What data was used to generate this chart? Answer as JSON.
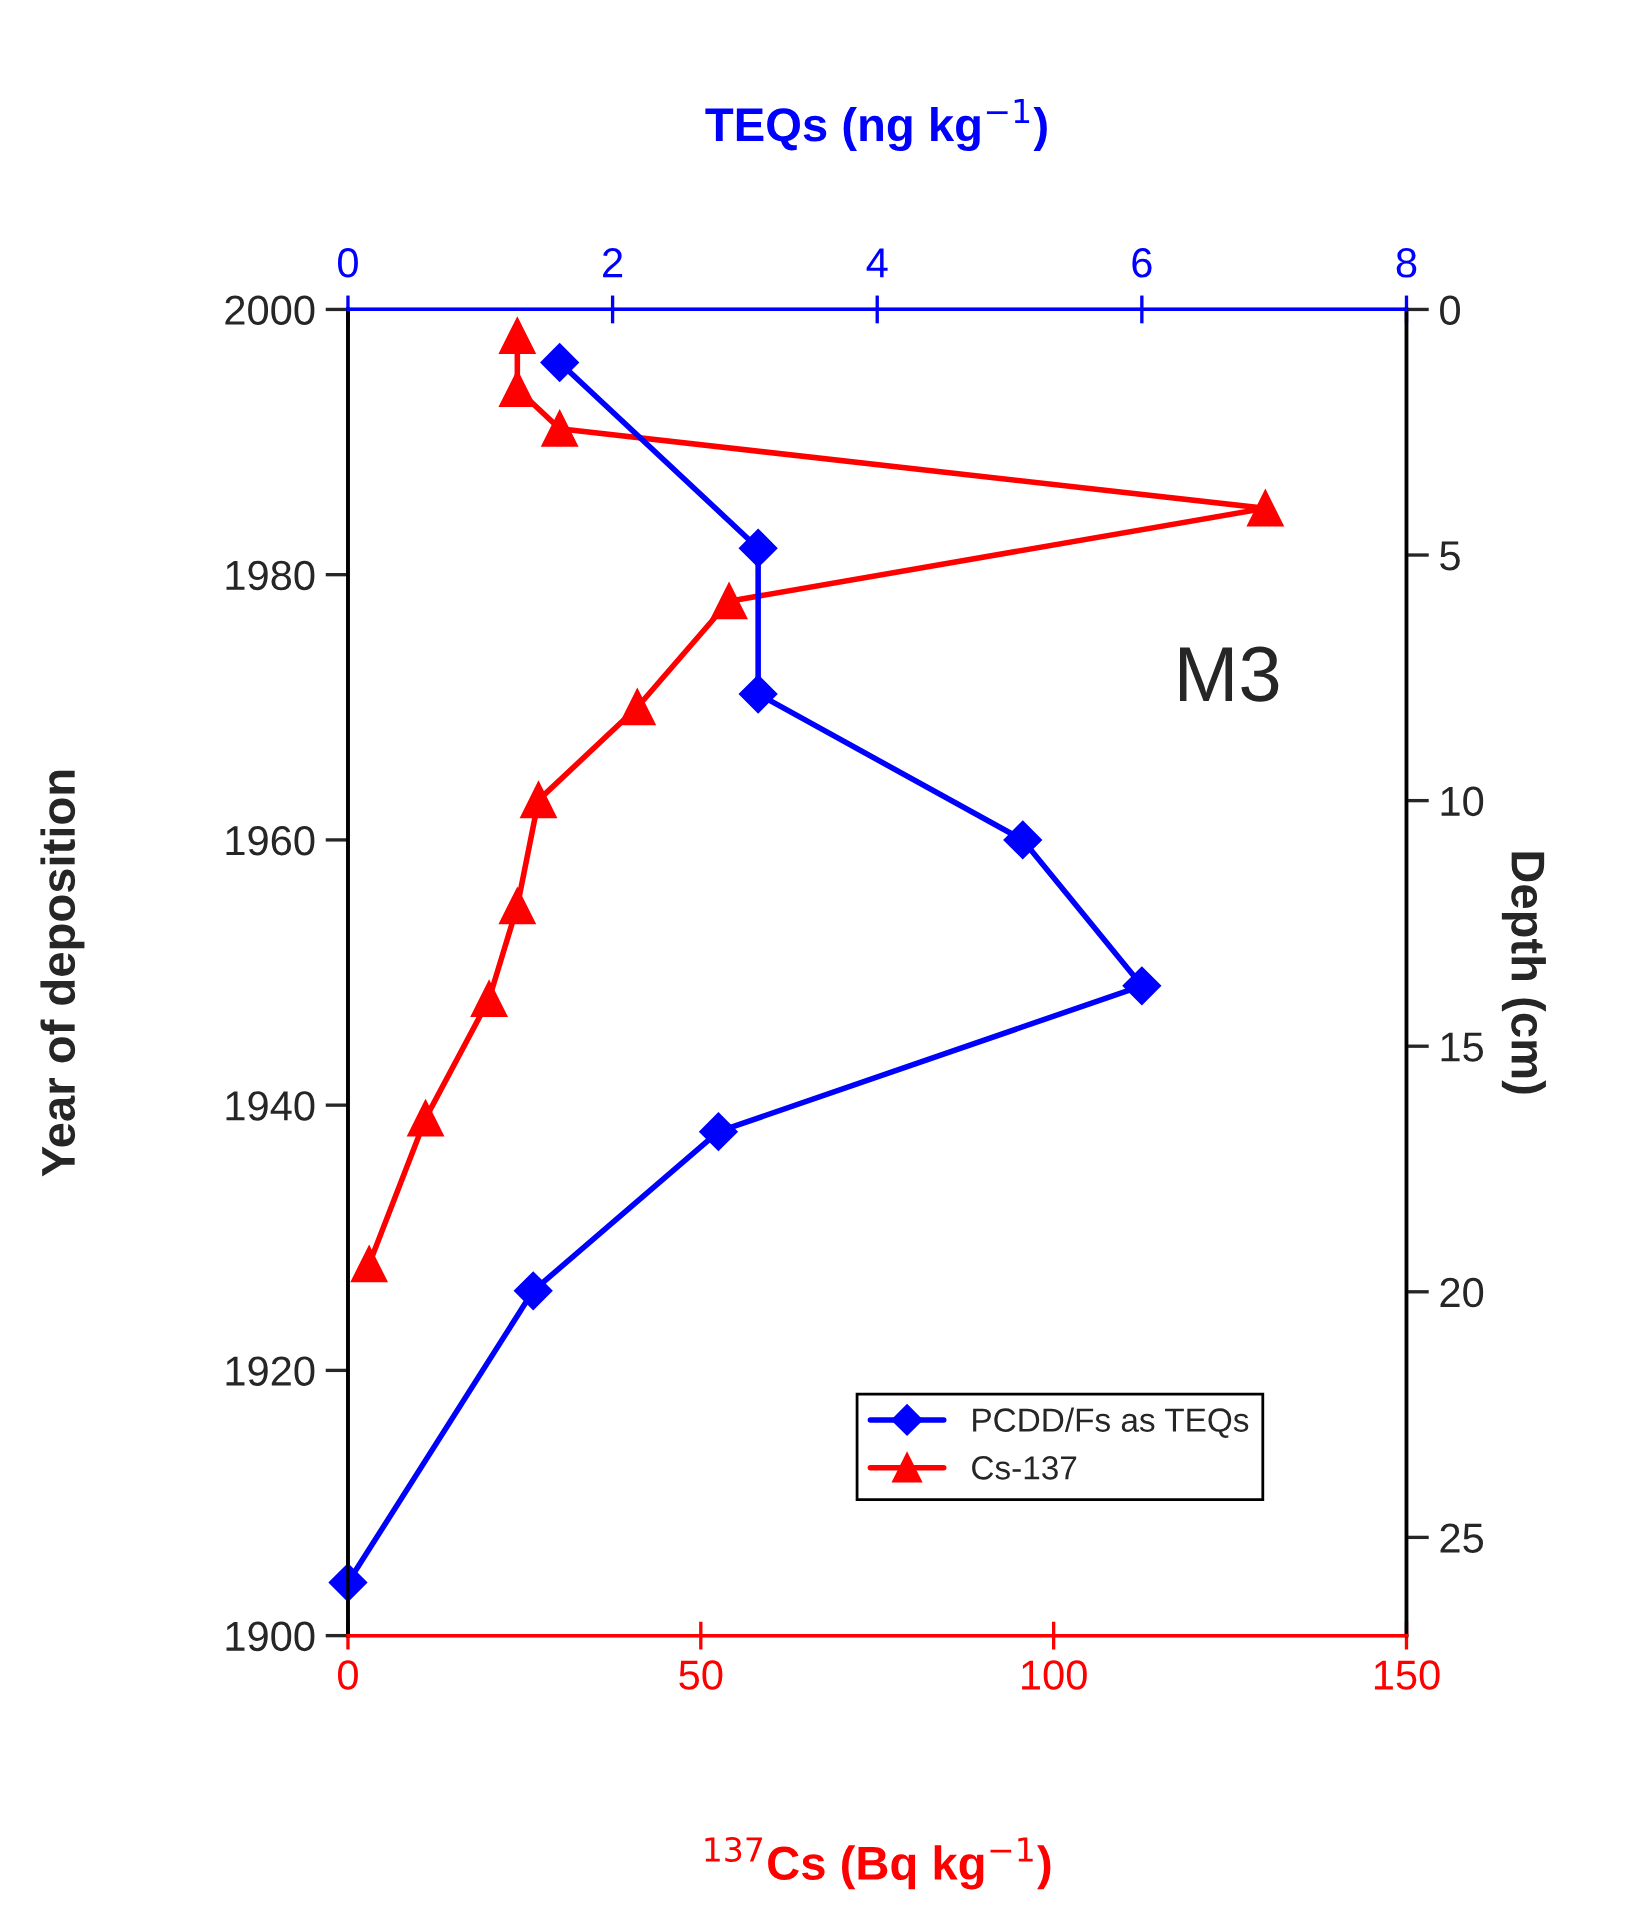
{
  "chart_data": {
    "type": "line",
    "xlabel": "$^{137}$Cs (Bq kg$^{−1}$)",
    "x2label": "TEQs (ng kg$^{−1}$)",
    "ylabel": "Year of deposition",
    "y2label": "Depth (cm)",
    "xlim": [
      0,
      150
    ],
    "xticks": [
      0,
      50,
      100,
      150
    ],
    "x2lim": [
      0,
      8
    ],
    "x2ticks": [
      0,
      2,
      4,
      6,
      8
    ],
    "ylim": [
      1900,
      2000
    ],
    "yticks": [
      1900,
      1920,
      1940,
      1960,
      1980,
      2000
    ],
    "y2lim": [
      27,
      0
    ],
    "y2ticks": [
      0,
      5,
      10,
      15,
      20,
      25
    ],
    "annotations": [
      "M3"
    ],
    "legend": "bottom right",
    "grid": false,
    "series": [
      {
        "name": "PCDD/Fs as TEQs",
        "color": "#0000ff",
        "axis": "x2",
        "marker": "diamond",
        "x": [
          1.6,
          3.1,
          3.1,
          5.1,
          6.0,
          2.8,
          1.4,
          0.0
        ],
        "values": [
          1996,
          1982,
          1971,
          1960,
          1949,
          1938,
          1926,
          1904
        ]
      },
      {
        "name": "Cs-137",
        "color": "#ff0000",
        "marker": "triangle",
        "x": [
          24,
          24,
          30,
          130,
          54,
          41,
          27,
          24,
          20,
          11,
          3
        ],
        "values": [
          1998,
          1994,
          1991,
          1985,
          1978,
          1970,
          1963,
          1955,
          1948,
          1939,
          1928
        ]
      }
    ]
  }
}
